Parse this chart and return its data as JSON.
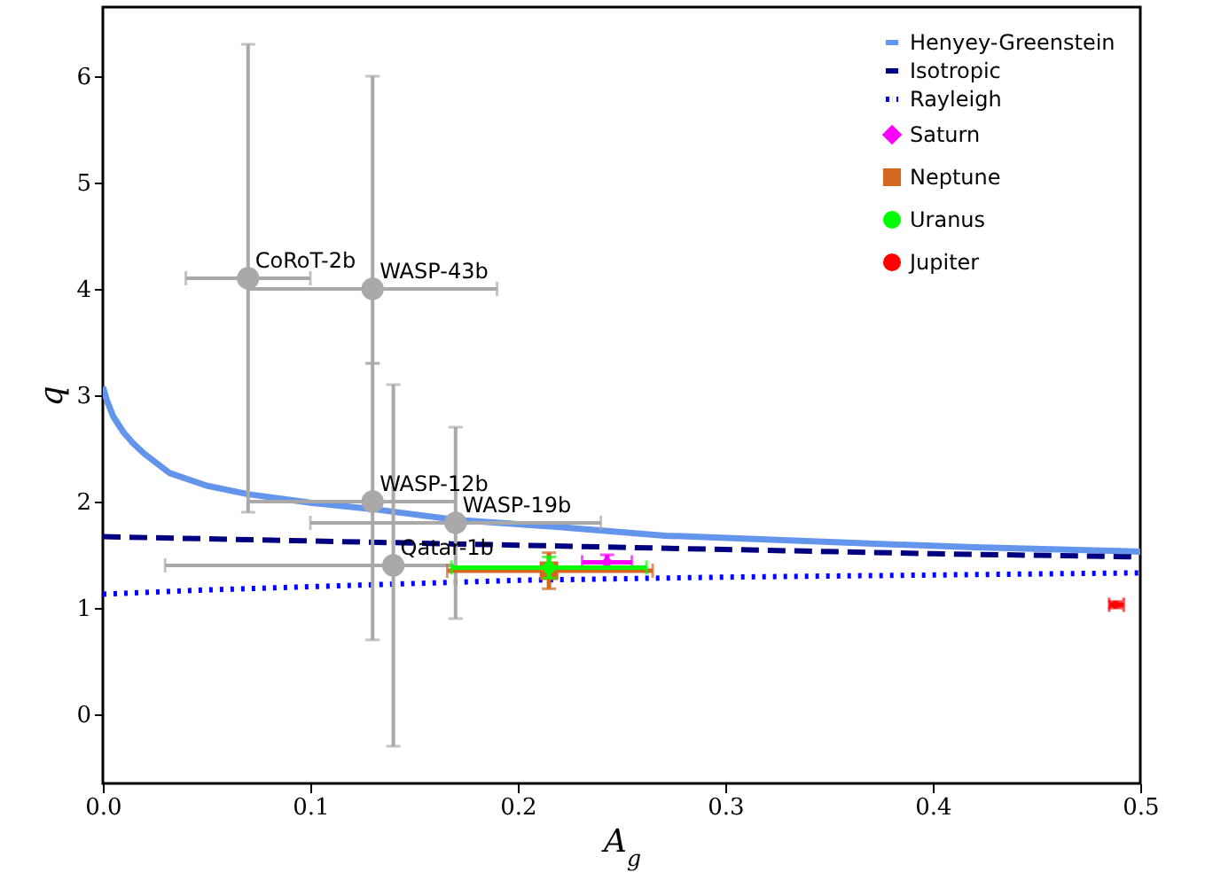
{
  "chart_data": {
    "type": "scatter",
    "xlabel": "A$_{g}$",
    "ylabel": "q",
    "xlim": [
      0,
      0.5
    ],
    "ylim": [
      -0.65,
      6.65
    ],
    "xticks": [
      {
        "value": 0,
        "label": "0.0"
      },
      {
        "value": 0.1,
        "label": "0.1"
      },
      {
        "value": 0.2,
        "label": "0.2"
      },
      {
        "value": 0.3,
        "label": "0.3"
      },
      {
        "value": 0.4,
        "label": "0.4"
      },
      {
        "value": 0.5,
        "label": "0.5"
      }
    ],
    "yticks": [
      0,
      1,
      2,
      3,
      4,
      5,
      6
    ],
    "legend": "top right",
    "series": [
      {
        "name": "Henyey-Greenstein",
        "type": "line",
        "line_style": "solid",
        "color": "#6495ed",
        "x": [
          0,
          0.002,
          0.005,
          0.01,
          0.0145,
          0.02,
          0.032,
          0.05,
          0.07,
          0.1,
          0.13,
          0.17,
          0.22,
          0.271,
          0.35,
          0.42,
          0.5
        ],
        "values": [
          3.08,
          2.95,
          2.8,
          2.65,
          2.55,
          2.45,
          2.27,
          2.15,
          2.07,
          1.99,
          1.93,
          1.83,
          1.76,
          1.68,
          1.62,
          1.57,
          1.53
        ]
      },
      {
        "name": "Isotropic",
        "type": "line",
        "line_style": "dashed",
        "color": "#000080",
        "x": [
          0,
          0.1,
          0.2,
          0.3,
          0.4,
          0.5
        ],
        "values": [
          1.67,
          1.63,
          1.59,
          1.55,
          1.51,
          1.48
        ]
      },
      {
        "name": "Rayleigh",
        "type": "line",
        "line_style": "dotted",
        "color": "#0000ff",
        "x": [
          0,
          0.05,
          0.1,
          0.2,
          0.3,
          0.4,
          0.5
        ],
        "values": [
          1.13,
          1.17,
          1.2,
          1.26,
          1.29,
          1.31,
          1.33
        ]
      },
      {
        "marker": "circle",
        "color": "#a9a9a9",
        "x": [
          0.07,
          0.13,
          0.13,
          0.17,
          0.14
        ],
        "values": [
          4.1,
          4.0,
          2.0,
          1.8,
          1.4
        ],
        "xerrors": [
          [
            0.04,
            0.1
          ],
          [
            0.07,
            0.19
          ],
          [
            0.07,
            0.17
          ],
          [
            0.1,
            0.24
          ],
          [
            0.03,
            0.17
          ]
        ],
        "errors": [
          [
            1.9,
            6.3
          ],
          [
            3.3,
            6.0
          ],
          [
            0.7,
            3.3
          ],
          [
            0.9,
            2.7
          ],
          [
            -0.3,
            3.1
          ]
        ]
      },
      {
        "name": "Saturn",
        "marker": "diamond",
        "color": "#ff00ff",
        "x": [
          0.243
        ],
        "values": [
          1.43
        ],
        "xerrors": [
          [
            0.231,
            0.255
          ]
        ],
        "errors": [
          [
            1.36,
            1.5
          ]
        ]
      },
      {
        "name": "Neptune",
        "marker": "square",
        "color": "#d2691e",
        "x": [
          0.215
        ],
        "values": [
          1.35
        ],
        "xerrors": [
          [
            0.166,
            0.265
          ]
        ],
        "errors": [
          [
            1.18,
            1.52
          ]
        ]
      },
      {
        "name": "Uranus",
        "marker": "circle",
        "color": "#00ff00",
        "x": [
          0.215
        ],
        "values": [
          1.38
        ],
        "xerrors": [
          [
            0.168,
            0.262
          ]
        ],
        "errors": [
          [
            1.28,
            1.48
          ]
        ]
      },
      {
        "name": "Jupiter",
        "marker": "circle",
        "color": "#ff0000",
        "x": [
          0.488
        ],
        "values": [
          1.03
        ],
        "xerrors": [
          [
            0.485,
            0.492
          ]
        ],
        "errors": [
          [
            1.0,
            1.06
          ]
        ]
      }
    ],
    "annotations": [
      {
        "text": "CoRoT-2b",
        "x": 0.07,
        "y": 4.1
      },
      {
        "text": "WASP-43b",
        "x": 0.13,
        "y": 4.0
      },
      {
        "text": "WASP-12b",
        "x": 0.13,
        "y": 2.0
      },
      {
        "text": "WASP-19b",
        "x": 0.17,
        "y": 1.8
      },
      {
        "text": "Qatar-1b",
        "x": 0.14,
        "y": 1.4
      }
    ]
  }
}
